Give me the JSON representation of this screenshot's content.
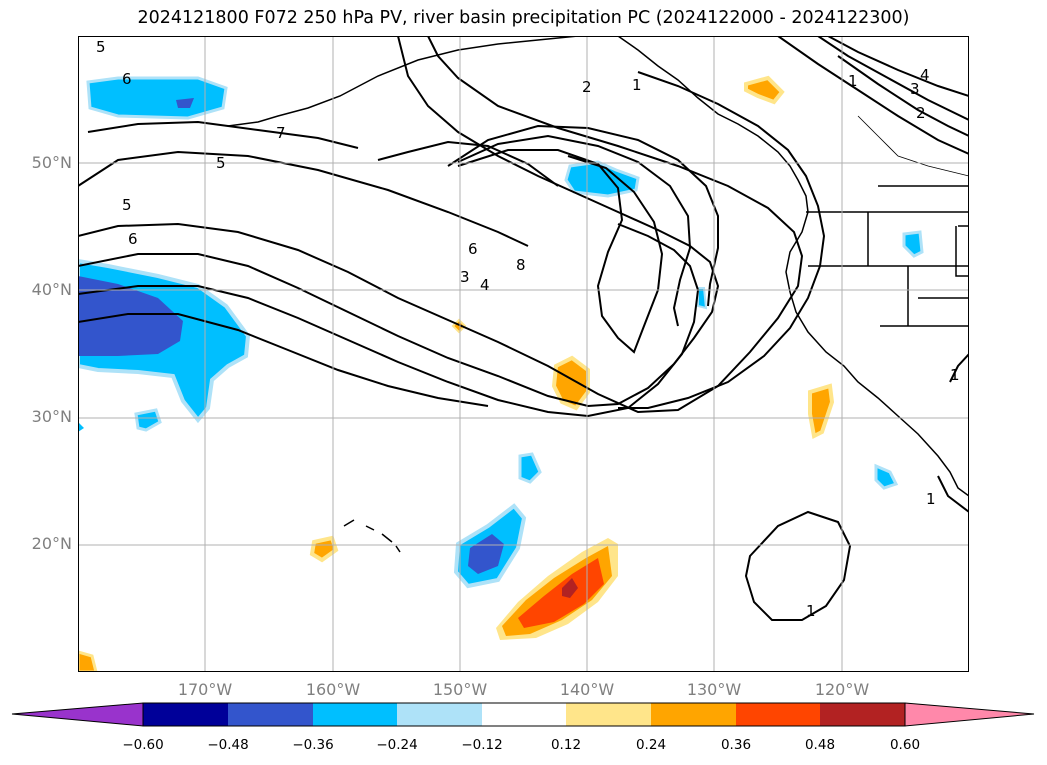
{
  "title": "2024121800 F072 250 hPa PV, river basin precipitation PC (2024122000 - 2024122300)",
  "lat_labels": [
    "50°N",
    "40°N",
    "30°N",
    "20°N"
  ],
  "lon_labels": [
    "170°W",
    "160°W",
    "150°W",
    "140°W",
    "130°W",
    "120°W"
  ],
  "colorbar": {
    "ticks": [
      "−0.60",
      "−0.48",
      "−0.36",
      "−0.24",
      "−0.12",
      "0.12",
      "0.24",
      "0.36",
      "0.48",
      "0.60"
    ],
    "colors": [
      "#9933cc",
      "#000099",
      "#3355cc",
      "#00bfff",
      "#aee2f8",
      "#ffffff",
      "#ffe58a",
      "#ffa500",
      "#ff4500",
      "#b22222",
      "#ff88aa"
    ]
  },
  "contour_labels": [
    "5",
    "6",
    "7",
    "5",
    "5",
    "6",
    "2",
    "1",
    "1",
    "4",
    "3",
    "2",
    "6",
    "8",
    "3",
    "4",
    "1",
    "1",
    "1"
  ]
}
